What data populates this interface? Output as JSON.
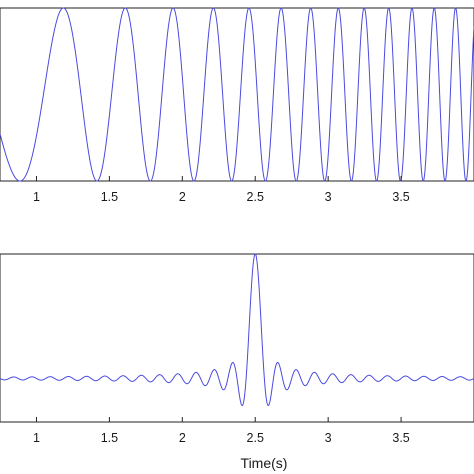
{
  "chart_data": [
    {
      "type": "line",
      "series_color": "#4a4ae0",
      "signal": "chirp",
      "x_range": [
        0.75,
        4.0
      ],
      "ylim": [
        -1,
        1
      ],
      "x_ticks": [
        1,
        1.5,
        2,
        2.5,
        3,
        3.5
      ],
      "x_tick_labels": [
        "1",
        "1.5",
        "2",
        "2.5",
        "3",
        "3.5"
      ],
      "freq_start_hz": 1.15,
      "freq_end_hz": 7.2,
      "xlabel": ""
    },
    {
      "type": "line",
      "series_color": "#4a4ae0",
      "signal": "sinc pulse",
      "x_range": [
        0.75,
        4.0
      ],
      "ylim": [
        -0.35,
        1.0
      ],
      "pulse_center": 2.5,
      "pulse_peak": 1.0,
      "baseline": 0,
      "ripple_freq_hz": 16,
      "x_ticks": [
        1,
        1.5,
        2,
        2.5,
        3,
        3.5
      ],
      "x_tick_labels": [
        "1",
        "1.5",
        "2",
        "2.5",
        "3",
        "3.5"
      ],
      "xlabel": "Time(s)"
    }
  ]
}
